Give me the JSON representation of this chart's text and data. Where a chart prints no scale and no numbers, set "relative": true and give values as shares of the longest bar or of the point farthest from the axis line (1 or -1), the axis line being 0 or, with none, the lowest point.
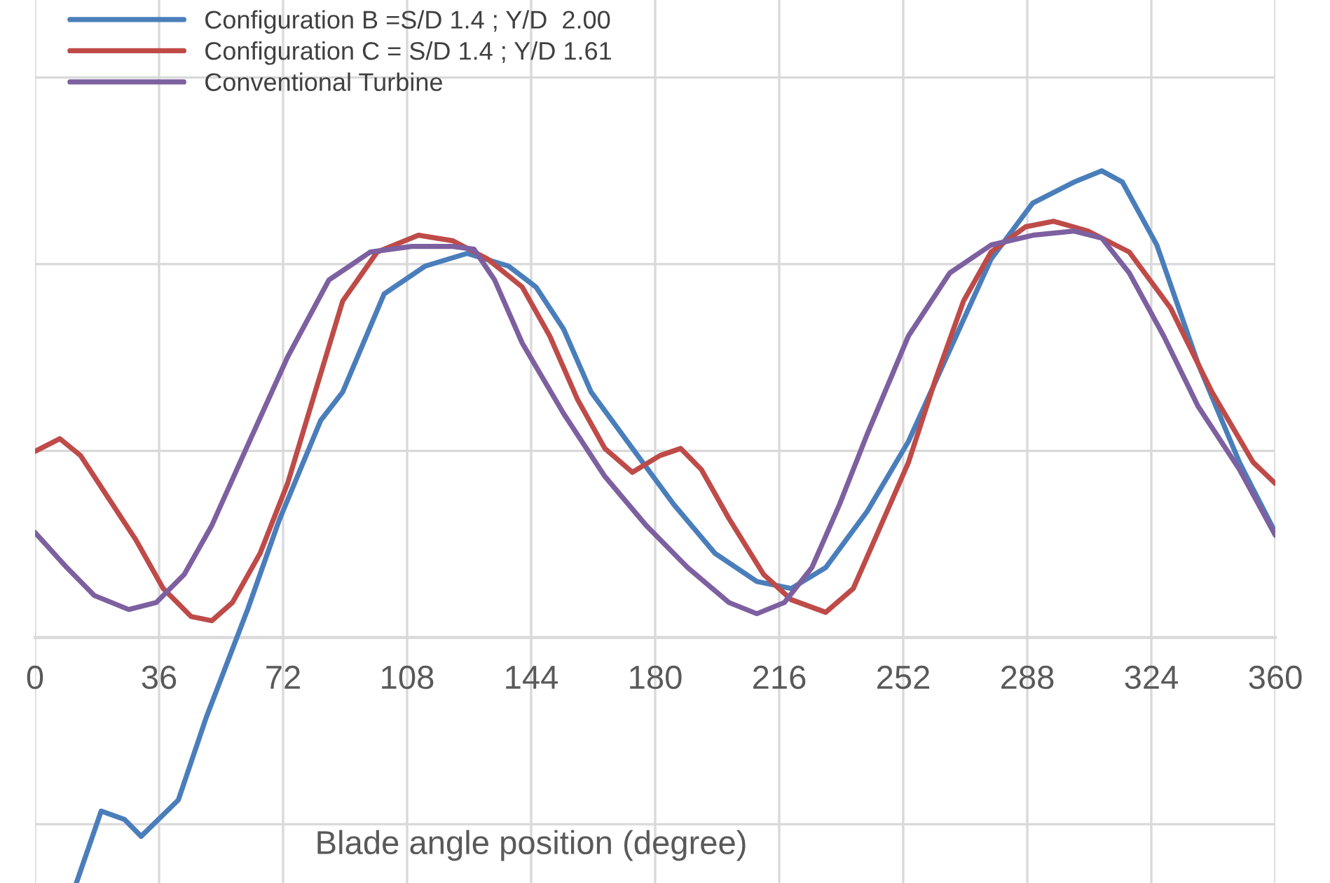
{
  "chart_data": {
    "type": "line",
    "relative": true,
    "xlabel": "Blade angle position (degree)",
    "xlim": [
      0,
      360
    ],
    "xticks": [
      0,
      36,
      72,
      108,
      144,
      180,
      216,
      252,
      288,
      324,
      360
    ],
    "grid": true,
    "legend": "top left",
    "marker": "none",
    "line_style": "solid",
    "series": [
      {
        "name": "Configuration B =S/D 1.4 ; Y/D  2.00",
        "color": "#4a7ebb",
        "x": [
          12.0,
          19.2,
          26.0,
          30.8,
          41.6,
          49.7,
          61.7,
          70.9,
          82.9,
          89.3,
          101.3,
          113.3,
          125.4,
          137.4,
          145.4,
          153.4,
          161.4,
          173.4,
          185.4,
          197.4,
          209.5,
          219.5,
          229.5,
          241.5,
          253.5,
          265.5,
          277.5,
          289.6,
          301.6,
          309.6,
          315.6,
          325.6,
          337.6,
          349.6,
          360
        ],
        "values": [
          -0.526,
          -0.372,
          -0.39,
          -0.426,
          -0.348,
          -0.171,
          0.06,
          0.252,
          0.465,
          0.526,
          0.736,
          0.796,
          0.823,
          0.796,
          0.751,
          0.661,
          0.526,
          0.405,
          0.285,
          0.18,
          0.12,
          0.105,
          0.15,
          0.27,
          0.42,
          0.616,
          0.811,
          0.931,
          0.976,
          1.0,
          0.976,
          0.841,
          0.586,
          0.375,
          0.225
        ]
      },
      {
        "name": "Configuration C = S/D 1.4 ; Y/D 1.61",
        "color": "#be4b48",
        "x": [
          0,
          7.2,
          13.2,
          21.2,
          29.2,
          37.2,
          45.3,
          51.3,
          57.3,
          65.3,
          73.3,
          81.3,
          89.3,
          99.3,
          111.3,
          121.3,
          131.4,
          141.4,
          149.4,
          157.4,
          165.4,
          173.4,
          181.4,
          187.4,
          193.4,
          201.4,
          211.5,
          219.5,
          229.5,
          237.5,
          245.5,
          253.5,
          261.5,
          269.5,
          277.5,
          287.5,
          295.6,
          305.6,
          317.6,
          329.6,
          341.6,
          353.6,
          360
        ],
        "values": [
          0.399,
          0.426,
          0.39,
          0.3,
          0.21,
          0.105,
          0.045,
          0.036,
          0.075,
          0.18,
          0.33,
          0.526,
          0.721,
          0.826,
          0.862,
          0.85,
          0.811,
          0.751,
          0.646,
          0.511,
          0.405,
          0.354,
          0.39,
          0.405,
          0.36,
          0.255,
          0.135,
          0.081,
          0.054,
          0.105,
          0.24,
          0.375,
          0.556,
          0.721,
          0.826,
          0.88,
          0.892,
          0.871,
          0.826,
          0.706,
          0.526,
          0.375,
          0.33
        ]
      },
      {
        "name": "Conventional Turbine",
        "color": "#7d60a0",
        "x": [
          0,
          9.2,
          17.2,
          27.2,
          35.2,
          43.3,
          51.3,
          61.3,
          73.3,
          85.3,
          97.3,
          109.3,
          121.3,
          127.4,
          133.4,
          141.4,
          153.4,
          165.4,
          177.4,
          189.4,
          201.4,
          209.5,
          217.5,
          225.5,
          233.5,
          241.5,
          253.5,
          265.5,
          277.5,
          289.6,
          301.6,
          309.6,
          317.6,
          327.6,
          337.6,
          349.6,
          360
        ],
        "values": [
          0.225,
          0.15,
          0.09,
          0.06,
          0.075,
          0.135,
          0.24,
          0.405,
          0.601,
          0.766,
          0.826,
          0.838,
          0.838,
          0.832,
          0.766,
          0.631,
          0.48,
          0.345,
          0.24,
          0.15,
          0.075,
          0.051,
          0.075,
          0.15,
          0.285,
          0.435,
          0.646,
          0.781,
          0.841,
          0.862,
          0.871,
          0.856,
          0.781,
          0.646,
          0.495,
          0.36,
          0.219
        ]
      }
    ]
  }
}
